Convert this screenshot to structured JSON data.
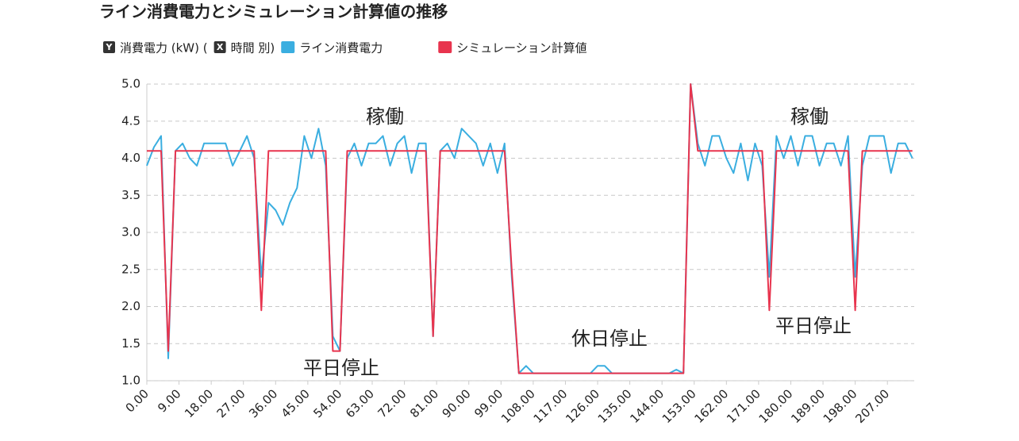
{
  "chart_data": {
    "type": "line",
    "title": "ライン消費電力とシミュレーション計算値の推移",
    "axis_labels": [
      {
        "badge": "Y",
        "text": "消費電力 (kW) ("
      },
      {
        "badge": "X",
        "text": "時間 別)"
      }
    ],
    "x": [
      0,
      2,
      4,
      6,
      8,
      10,
      12,
      14,
      16,
      18,
      20,
      22,
      24,
      26,
      28,
      30,
      32,
      34,
      36,
      38,
      40,
      42,
      44,
      46,
      48,
      50,
      52,
      54,
      56,
      58,
      60,
      62,
      64,
      66,
      68,
      70,
      72,
      74,
      76,
      78,
      80,
      82,
      84,
      86,
      88,
      90,
      92,
      94,
      96,
      98,
      100,
      102,
      104,
      106,
      108,
      110,
      112,
      114,
      116,
      118,
      120,
      122,
      124,
      126,
      128,
      130,
      132,
      134,
      136,
      138,
      140,
      142,
      144,
      146,
      148,
      150,
      152,
      154,
      156,
      158,
      160,
      162,
      164,
      166,
      168,
      170,
      172,
      174,
      176,
      178,
      180,
      182,
      184,
      186,
      188,
      190,
      192,
      194,
      196,
      198,
      200,
      202,
      204,
      206,
      208,
      210,
      212,
      214
    ],
    "series": [
      {
        "name": "ライン消費電力",
        "color": "#3aaee0",
        "values": [
          3.9,
          4.15,
          4.3,
          1.3,
          4.1,
          4.2,
          4.0,
          3.9,
          4.2,
          4.2,
          4.2,
          4.2,
          3.9,
          4.1,
          4.3,
          4.0,
          2.4,
          3.4,
          3.3,
          3.1,
          3.4,
          3.6,
          4.3,
          4.0,
          4.4,
          3.9,
          1.6,
          1.4,
          4.0,
          4.2,
          3.9,
          4.2,
          4.2,
          4.3,
          3.9,
          4.2,
          4.3,
          3.8,
          4.2,
          4.2,
          1.6,
          4.1,
          4.2,
          4.0,
          4.4,
          4.3,
          4.2,
          3.9,
          4.2,
          3.8,
          4.2,
          2.4,
          1.1,
          1.2,
          1.1,
          1.1,
          1.1,
          1.1,
          1.1,
          1.1,
          1.1,
          1.1,
          1.1,
          1.2,
          1.2,
          1.1,
          1.1,
          1.1,
          1.1,
          1.1,
          1.1,
          1.1,
          1.1,
          1.1,
          1.15,
          1.1,
          5.0,
          4.2,
          3.9,
          4.3,
          4.3,
          4.0,
          3.8,
          4.2,
          3.7,
          4.2,
          3.9,
          2.4,
          4.3,
          4.0,
          4.3,
          3.9,
          4.3,
          4.3,
          3.9,
          4.2,
          4.2,
          3.9,
          4.3,
          2.4,
          3.9,
          4.3,
          4.3,
          4.3,
          3.8,
          4.2,
          4.2,
          4.0
        ]
      },
      {
        "name": "シミュレーション計算値",
        "color": "#e8344e",
        "values": [
          4.1,
          4.1,
          4.1,
          1.4,
          4.1,
          4.1,
          4.1,
          4.1,
          4.1,
          4.1,
          4.1,
          4.1,
          4.1,
          4.1,
          4.1,
          4.1,
          1.95,
          4.1,
          4.1,
          4.1,
          4.1,
          4.1,
          4.1,
          4.1,
          4.1,
          4.1,
          1.4,
          1.4,
          4.1,
          4.1,
          4.1,
          4.1,
          4.1,
          4.1,
          4.1,
          4.1,
          4.1,
          4.1,
          4.1,
          4.1,
          1.6,
          4.1,
          4.1,
          4.1,
          4.1,
          4.1,
          4.1,
          4.1,
          4.1,
          4.1,
          4.1,
          2.5,
          1.1,
          1.1,
          1.1,
          1.1,
          1.1,
          1.1,
          1.1,
          1.1,
          1.1,
          1.1,
          1.1,
          1.1,
          1.1,
          1.1,
          1.1,
          1.1,
          1.1,
          1.1,
          1.1,
          1.1,
          1.1,
          1.1,
          1.1,
          1.1,
          5.0,
          4.1,
          4.1,
          4.1,
          4.1,
          4.1,
          4.1,
          4.1,
          4.1,
          4.1,
          4.1,
          1.95,
          4.1,
          4.1,
          4.1,
          4.1,
          4.1,
          4.1,
          4.1,
          4.1,
          4.1,
          4.1,
          4.1,
          1.95,
          4.1,
          4.1,
          4.1,
          4.1,
          4.1,
          4.1,
          4.1,
          4.1
        ]
      }
    ],
    "xlim": [
      0,
      214.5
    ],
    "xticks": [
      {
        "value": 0,
        "label": "0.00"
      },
      {
        "value": 9,
        "label": "9.00"
      },
      {
        "value": 18,
        "label": "18.00"
      },
      {
        "value": 27,
        "label": "27.00"
      },
      {
        "value": 36,
        "label": "36.00"
      },
      {
        "value": 45,
        "label": "45.00"
      },
      {
        "value": 54,
        "label": "54.00"
      },
      {
        "value": 63,
        "label": "63.00"
      },
      {
        "value": 72,
        "label": "72.00"
      },
      {
        "value": 81,
        "label": "81.00"
      },
      {
        "value": 90,
        "label": "90.00"
      },
      {
        "value": 99,
        "label": "99.00"
      },
      {
        "value": 108,
        "label": "108.00"
      },
      {
        "value": 117,
        "label": "117.00"
      },
      {
        "value": 126,
        "label": "126.00"
      },
      {
        "value": 135,
        "label": "135.00"
      },
      {
        "value": 144,
        "label": "144.00"
      },
      {
        "value": 153,
        "label": "153.00"
      },
      {
        "value": 162,
        "label": "162.00"
      },
      {
        "value": 171,
        "label": "171.00"
      },
      {
        "value": 180,
        "label": "180.00"
      },
      {
        "value": 189,
        "label": "189.00"
      },
      {
        "value": 198,
        "label": "198.00"
      },
      {
        "value": 207,
        "label": "207.00"
      }
    ],
    "ylim": [
      1,
      5
    ],
    "yticks": [
      {
        "value": 1,
        "label": "1.0"
      },
      1.5,
      {
        "value": 2,
        "label": "2.0"
      },
      2.5,
      {
        "value": 3,
        "label": "3.0"
      },
      3.5,
      {
        "value": 4,
        "label": "4.0"
      },
      4.5,
      {
        "value": 5,
        "label": "5.0"
      }
    ],
    "grid": true,
    "annotations": [
      "稼働",
      "稼働",
      "平日停止",
      "休日停止",
      "平日停止"
    ]
  }
}
